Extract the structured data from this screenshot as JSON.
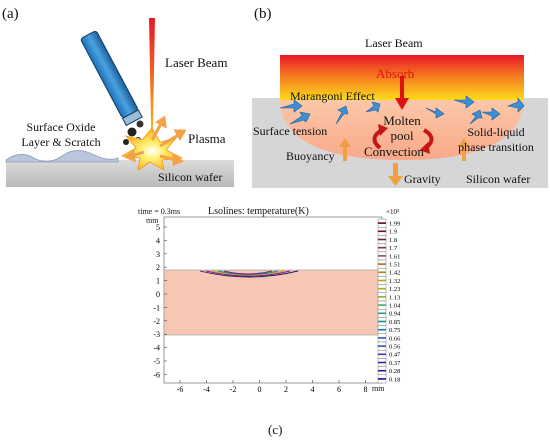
{
  "panel_a": {
    "label": "(a)",
    "laser_beam": "Laser Beam",
    "oxide_line1": "Surface Oxide",
    "oxide_line2": "Layer & Scratch",
    "plasma": "Plasma",
    "wafer": "Silicon wafer"
  },
  "panel_b": {
    "label": "(b)",
    "laser_beam": "Laser Beam",
    "absorb": "Absorb",
    "marangoni": "Marangoni Effect",
    "molten_line1": "Molten",
    "molten_line2": "pool",
    "surface_tension": "Surface tension",
    "solid_liquid_line1": "Solid-liquid",
    "solid_liquid_line2": "phase transition",
    "buoyancy": "Buoyancy",
    "convection": "Convection",
    "gravity": "Gravity",
    "wafer": "Silicon wafer"
  },
  "panel_c": {
    "label": "(c)",
    "time": "time = 0.3ms",
    "title": "Lsolines: temperature(K)",
    "y_unit": "mm",
    "x_unit": "mm",
    "y_ticks": [
      "5",
      "4",
      "3",
      "2",
      "1",
      "0",
      "-1",
      "-2",
      "-3",
      "-4",
      "-5",
      "-6"
    ],
    "x_ticks": [
      "-6",
      "-4",
      "-2",
      "0",
      "2",
      "4",
      "6",
      "8"
    ],
    "colorbar_exp": "×10³",
    "colorbar_ticks": [
      "1.99",
      "1.9",
      "1.8",
      "1.7",
      "1.61",
      "1.51",
      "1.42",
      "1.32",
      "1.23",
      "1.13",
      "1.04",
      "0.94",
      "0.85",
      "0.75",
      "0.66",
      "0.56",
      "0.47",
      "0.37",
      "0.28",
      "0.18"
    ]
  }
}
